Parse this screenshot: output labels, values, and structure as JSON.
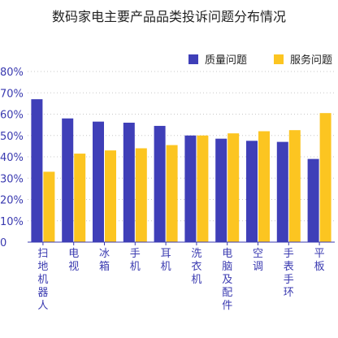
{
  "chart_data": {
    "type": "bar",
    "title": "数码家电主要产品品类投诉问题分布情况",
    "categories": [
      "扫地机器人",
      "电视",
      "冰箱",
      "手机",
      "耳机",
      "洗衣机",
      "电脑及配件",
      "空调",
      "手表手环",
      "平板"
    ],
    "series": [
      {
        "name": "质量问题",
        "color": "#3f3fb8",
        "values": [
          67,
          58,
          56.5,
          56,
          54.5,
          50,
          48.5,
          47.5,
          47,
          39
        ]
      },
      {
        "name": "服务问题",
        "color": "#fcc521",
        "values": [
          33,
          41.5,
          43,
          44,
          45.5,
          50,
          51,
          52,
          52.5,
          60.5
        ]
      }
    ],
    "y_ticks": [
      "0",
      "10%",
      "20%",
      "30%",
      "40%",
      "50%",
      "60%",
      "70%",
      "80%"
    ],
    "ylim": [
      0,
      80
    ],
    "grid": true,
    "legend_position": "top-right"
  }
}
